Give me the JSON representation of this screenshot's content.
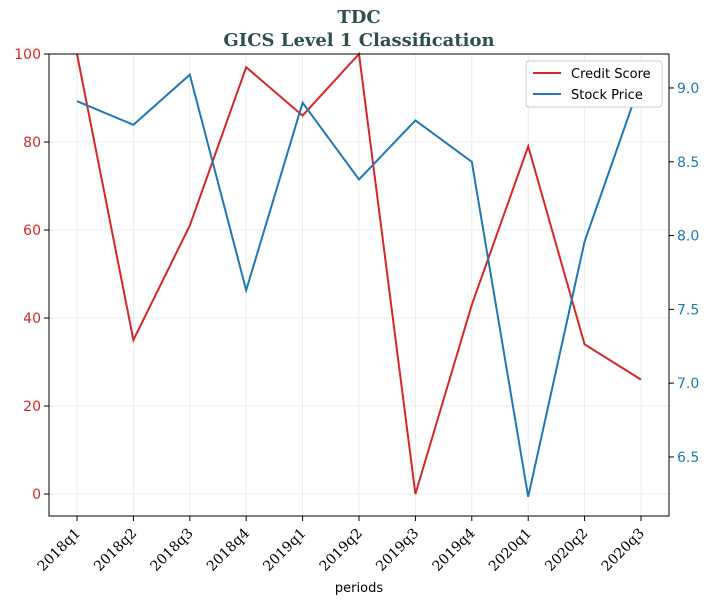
{
  "chart_data": {
    "type": "line",
    "title_line1": "TDC",
    "title_line2": "GICS Level 1 Classification",
    "xlabel": "periods",
    "categories": [
      "2018q1",
      "2018q2",
      "2018q3",
      "2018q4",
      "2019q1",
      "2019q2",
      "2019q3",
      "2019q4",
      "2020q1",
      "2020q2",
      "2020q3"
    ],
    "left_axis": {
      "ylim": [
        -5,
        100
      ],
      "ticks": [
        0,
        20,
        40,
        60,
        80,
        100
      ],
      "color": "#d62728"
    },
    "right_axis": {
      "ylim": [
        6.1,
        9.23
      ],
      "ticks": [
        6.5,
        7.0,
        7.5,
        8.0,
        8.5,
        9.0
      ],
      "tick_labels": [
        "6.5",
        "7.0",
        "7.5",
        "8.0",
        "8.5",
        "9.0"
      ],
      "color": "#1f77b4"
    },
    "series": [
      {
        "name": "Credit Score",
        "axis": "left",
        "color": "#d62728",
        "values": [
          100,
          35,
          61,
          97,
          86,
          100,
          0,
          43,
          79,
          34,
          26
        ]
      },
      {
        "name": "Stock Price",
        "axis": "right",
        "color": "#1f77b4",
        "values": [
          8.91,
          8.75,
          9.09,
          7.63,
          8.9,
          8.38,
          8.78,
          8.5,
          6.23,
          7.96,
          9.05
        ]
      }
    ],
    "grid": true,
    "legend_position": "top-right"
  }
}
